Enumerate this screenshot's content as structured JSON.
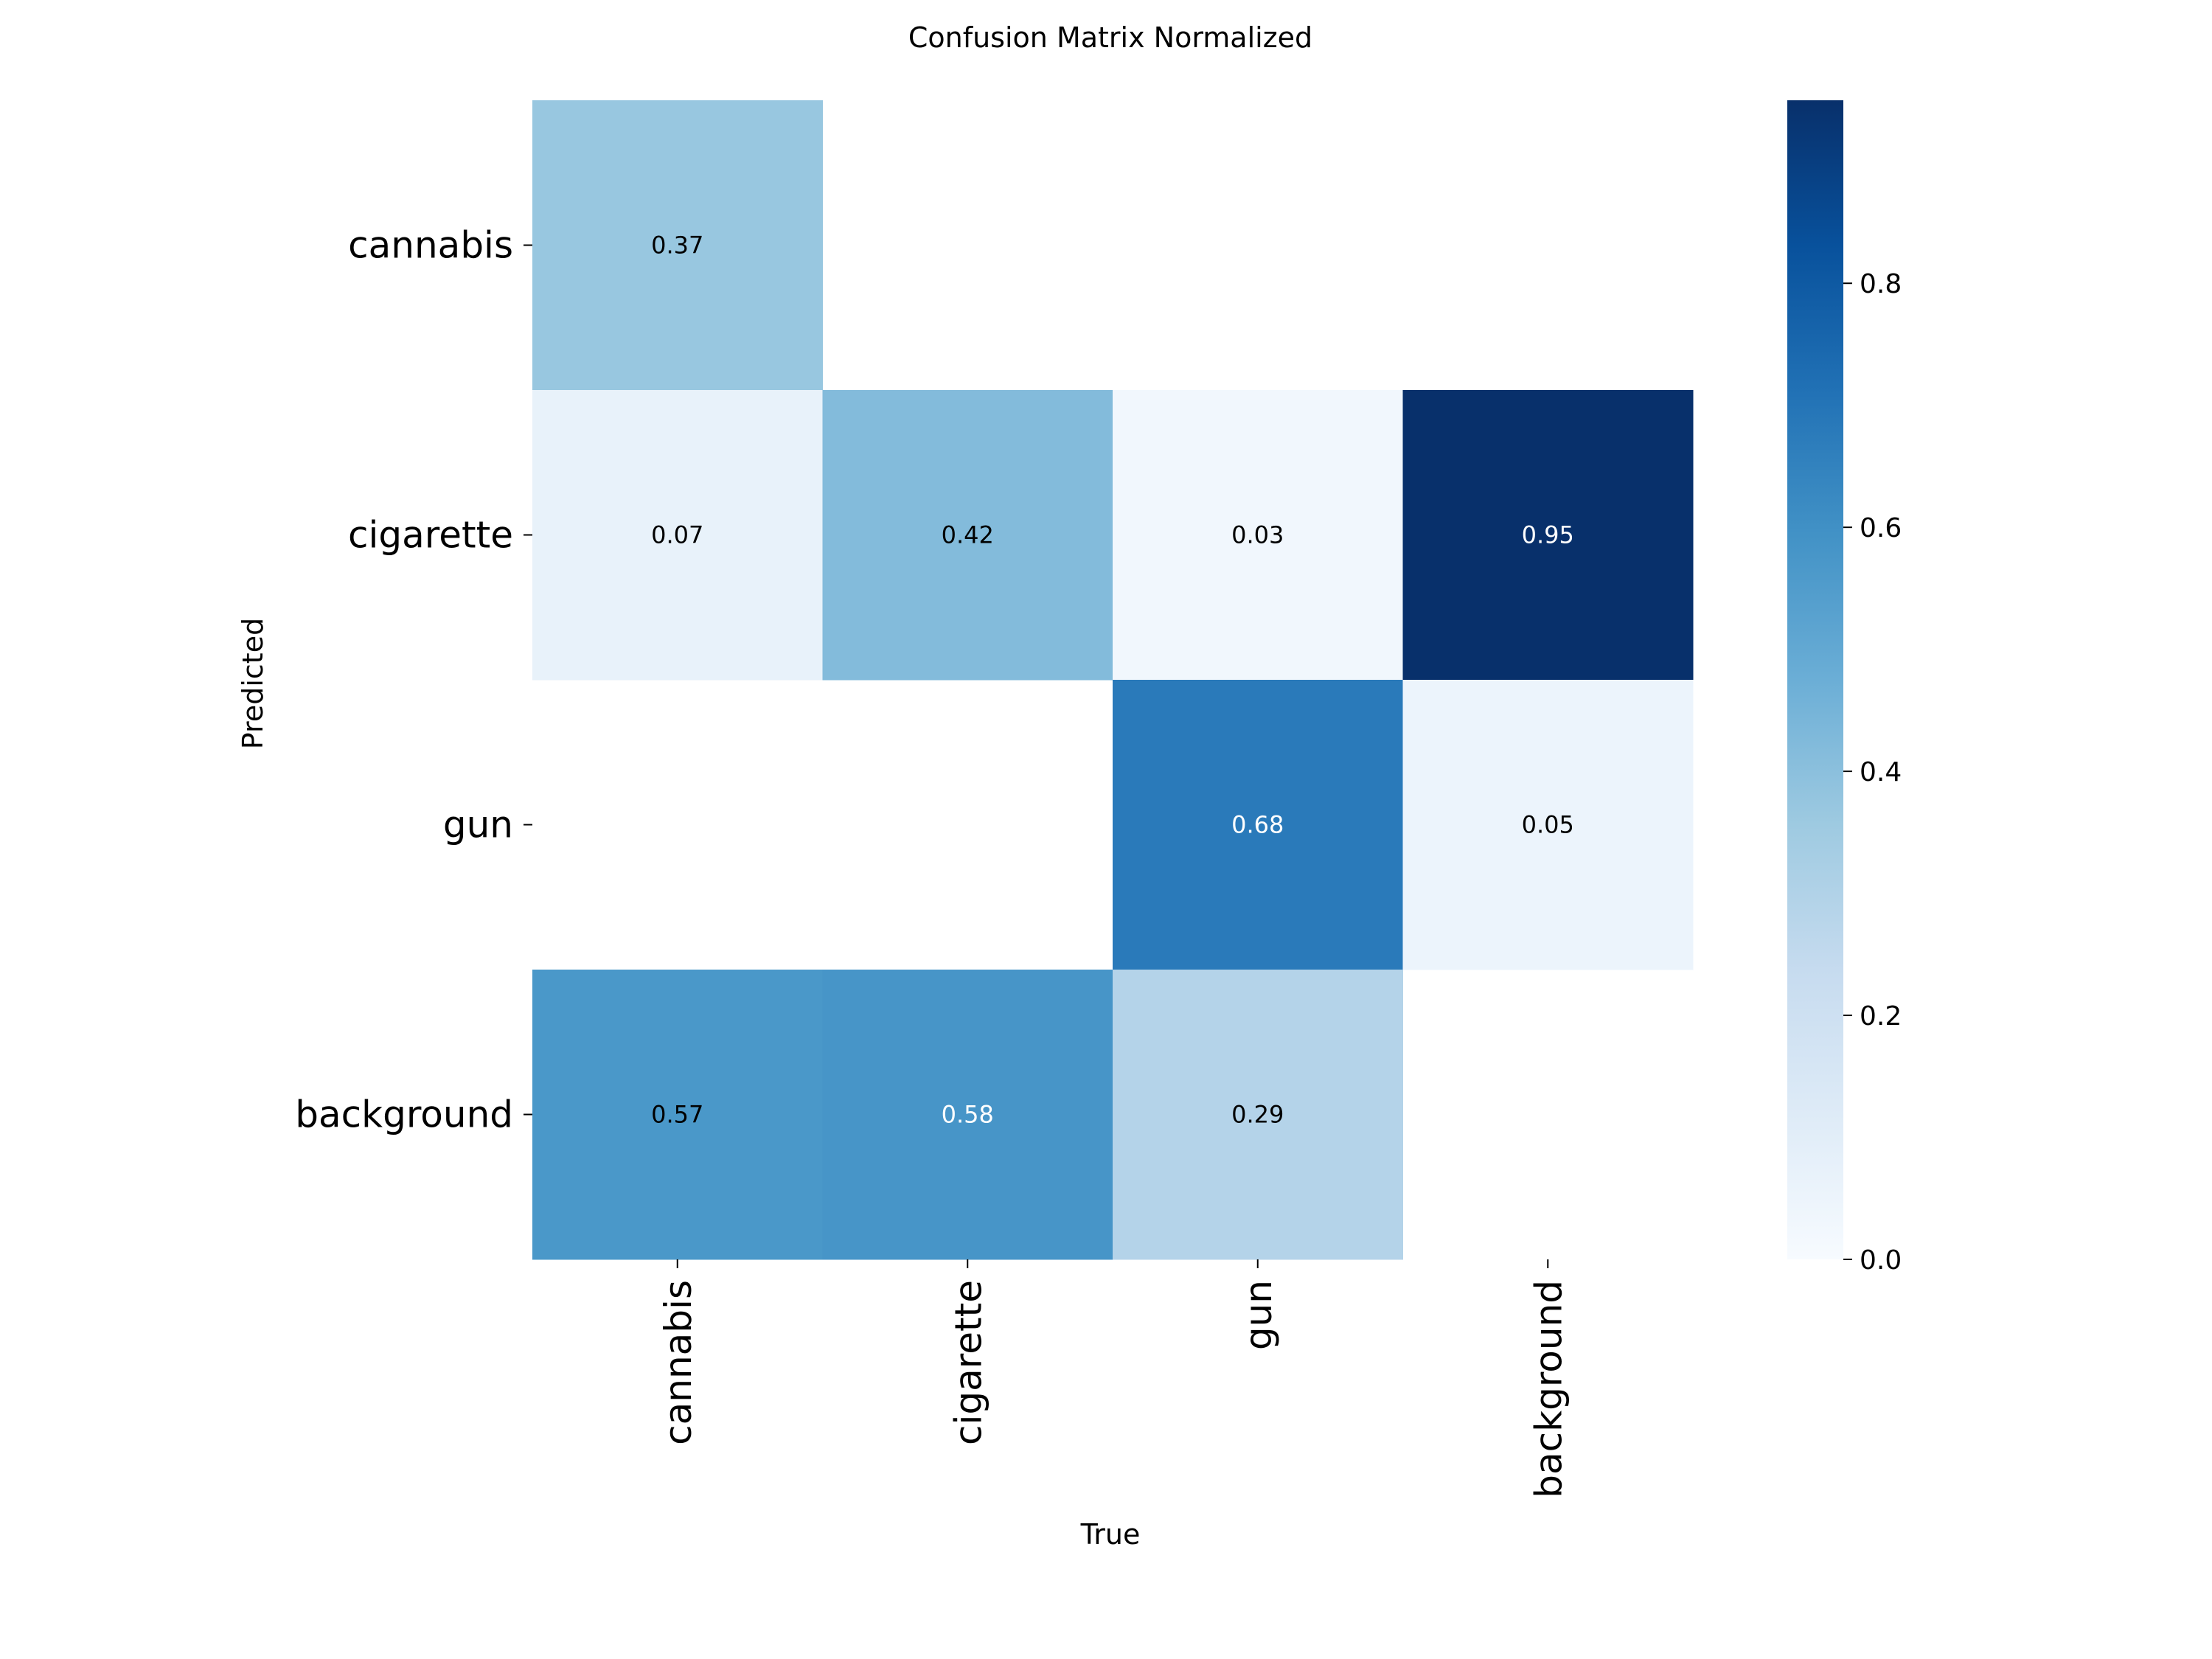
{
  "chart_data": {
    "type": "heatmap",
    "title": "Confusion Matrix Normalized",
    "xlabel": "True",
    "ylabel": "Predicted",
    "x_categories": [
      "cannabis",
      "cigarette",
      "gun",
      "background"
    ],
    "y_categories": [
      "cannabis",
      "cigarette",
      "gun",
      "background"
    ],
    "values": [
      [
        0.37,
        null,
        null,
        null
      ],
      [
        0.07,
        0.42,
        0.03,
        0.95
      ],
      [
        null,
        null,
        0.68,
        0.05
      ],
      [
        0.57,
        0.58,
        0.29,
        null
      ]
    ],
    "labels": [
      [
        "0.37",
        "",
        "",
        ""
      ],
      [
        "0.07",
        "0.42",
        "0.03",
        "0.95"
      ],
      [
        "",
        "",
        "0.68",
        "0.05"
      ],
      [
        "0.57",
        "0.58",
        "0.29",
        ""
      ]
    ],
    "colormap": "Blues",
    "colorbar": {
      "vmin": 0.0,
      "vmax": 0.95,
      "ticks": [
        0.0,
        0.2,
        0.4,
        0.6,
        0.8
      ],
      "tick_labels": [
        "0.0",
        "0.2",
        "0.4",
        "0.6",
        "0.8"
      ]
    }
  }
}
